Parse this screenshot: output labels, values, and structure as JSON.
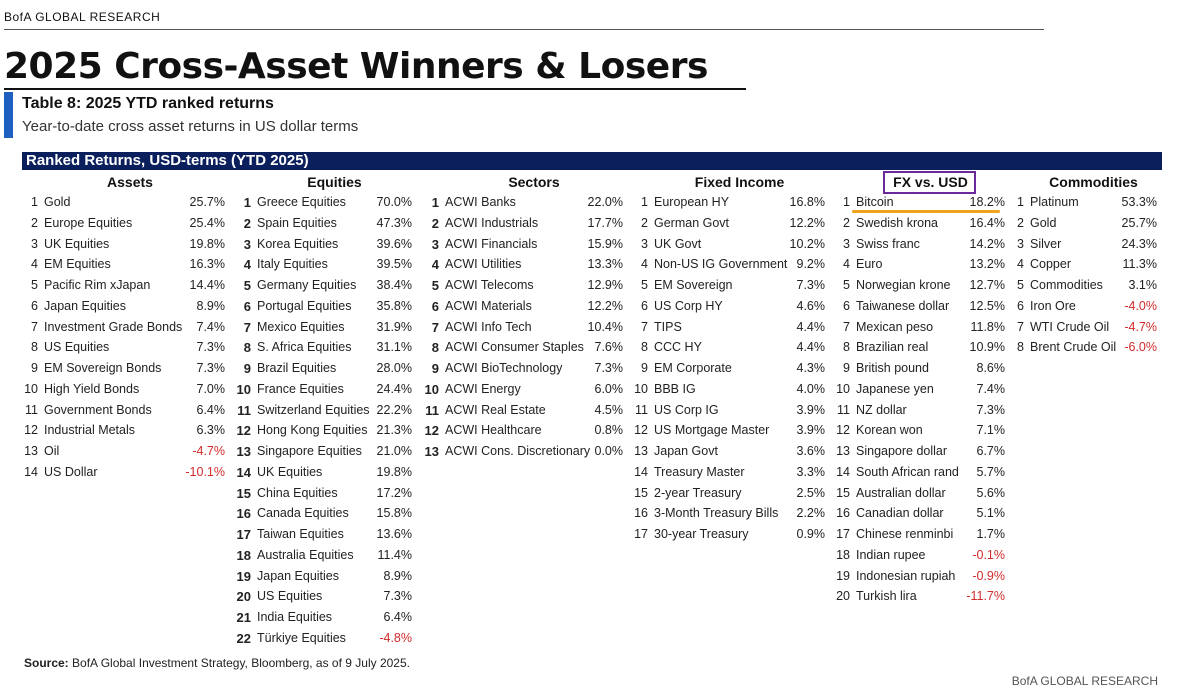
{
  "brand": "BofA GLOBAL RESEARCH",
  "title": "2025 Cross-Asset Winners & Losers",
  "table_title": "Table 8: 2025 YTD ranked returns",
  "subtitle": "Year-to-date cross asset returns in US dollar terms",
  "band_title": "Ranked Returns, USD-terms (YTD 2025)",
  "source_label": "Source:",
  "source_text": " BofA Global Investment Strategy, Bloomberg, as of 9 July 2025.",
  "brand_bottom": "BofA GLOBAL RESEARCH",
  "columns": [
    {
      "header": "Assets",
      "bold_rank": false,
      "rows": [
        {
          "rank": "1",
          "name": "Gold",
          "value": "25.7%"
        },
        {
          "rank": "2",
          "name": "Europe Equities",
          "value": "25.4%"
        },
        {
          "rank": "3",
          "name": "UK Equities",
          "value": "19.8%"
        },
        {
          "rank": "4",
          "name": "EM Equities",
          "value": "16.3%"
        },
        {
          "rank": "5",
          "name": "Pacific Rim xJapan",
          "value": "14.4%"
        },
        {
          "rank": "6",
          "name": "Japan Equities",
          "value": "8.9%"
        },
        {
          "rank": "7",
          "name": "Investment Grade Bonds",
          "value": "7.4%"
        },
        {
          "rank": "8",
          "name": "US Equities",
          "value": "7.3%"
        },
        {
          "rank": "9",
          "name": "EM Sovereign Bonds",
          "value": "7.3%"
        },
        {
          "rank": "10",
          "name": "High Yield Bonds",
          "value": "7.0%"
        },
        {
          "rank": "11",
          "name": "Government Bonds",
          "value": "6.4%"
        },
        {
          "rank": "12",
          "name": "Industrial Metals",
          "value": "6.3%"
        },
        {
          "rank": "13",
          "name": "Oil",
          "value": "-4.7%"
        },
        {
          "rank": "14",
          "name": "US Dollar",
          "value": "-10.1%"
        }
      ]
    },
    {
      "header": "Equities",
      "bold_rank": true,
      "rows": [
        {
          "rank": "1",
          "name": "Greece Equities",
          "value": "70.0%"
        },
        {
          "rank": "2",
          "name": "Spain Equities",
          "value": "47.3%"
        },
        {
          "rank": "3",
          "name": "Korea Equities",
          "value": "39.6%"
        },
        {
          "rank": "4",
          "name": "Italy Equities",
          "value": "39.5%"
        },
        {
          "rank": "5",
          "name": "Germany Equities",
          "value": "38.4%"
        },
        {
          "rank": "6",
          "name": "Portugal Equities",
          "value": "35.8%"
        },
        {
          "rank": "7",
          "name": "Mexico Equities",
          "value": "31.9%"
        },
        {
          "rank": "8",
          "name": "S. Africa Equities",
          "value": "31.1%"
        },
        {
          "rank": "9",
          "name": "Brazil Equities",
          "value": "28.0%"
        },
        {
          "rank": "10",
          "name": "France Equities",
          "value": "24.4%"
        },
        {
          "rank": "11",
          "name": "Switzerland Equities",
          "value": "22.2%"
        },
        {
          "rank": "12",
          "name": "Hong Kong Equities",
          "value": "21.3%"
        },
        {
          "rank": "13",
          "name": "Singapore Equities",
          "value": "21.0%"
        },
        {
          "rank": "14",
          "name": "UK Equities",
          "value": "19.8%"
        },
        {
          "rank": "15",
          "name": "China Equities",
          "value": "17.2%"
        },
        {
          "rank": "16",
          "name": "Canada Equities",
          "value": "15.8%"
        },
        {
          "rank": "17",
          "name": "Taiwan Equities",
          "value": "13.6%"
        },
        {
          "rank": "18",
          "name": "Australia Equities",
          "value": "11.4%"
        },
        {
          "rank": "19",
          "name": "Japan Equities",
          "value": "8.9%"
        },
        {
          "rank": "20",
          "name": "US Equities",
          "value": "7.3%"
        },
        {
          "rank": "21",
          "name": "India Equities",
          "value": "6.4%"
        },
        {
          "rank": "22",
          "name": "Türkiye Equities",
          "value": "-4.8%"
        }
      ]
    },
    {
      "header": "Sectors",
      "bold_rank": true,
      "rows": [
        {
          "rank": "1",
          "name": "ACWI Banks",
          "value": "22.0%"
        },
        {
          "rank": "2",
          "name": "ACWI Industrials",
          "value": "17.7%"
        },
        {
          "rank": "3",
          "name": "ACWI Financials",
          "value": "15.9%"
        },
        {
          "rank": "4",
          "name": "ACWI Utilities",
          "value": "13.3%"
        },
        {
          "rank": "5",
          "name": "ACWI Telecoms",
          "value": "12.9%"
        },
        {
          "rank": "6",
          "name": "ACWI Materials",
          "value": "12.2%"
        },
        {
          "rank": "7",
          "name": "ACWI Info Tech",
          "value": "10.4%"
        },
        {
          "rank": "8",
          "name": "ACWI Consumer Staples",
          "value": "7.6%"
        },
        {
          "rank": "9",
          "name": "ACWI BioTechnology",
          "value": "7.3%"
        },
        {
          "rank": "10",
          "name": "ACWI Energy",
          "value": "6.0%"
        },
        {
          "rank": "11",
          "name": "ACWI Real Estate",
          "value": "4.5%"
        },
        {
          "rank": "12",
          "name": "ACWI Healthcare",
          "value": "0.8%"
        },
        {
          "rank": "13",
          "name": "ACWI Cons. Discretionary",
          "value": "0.0%"
        }
      ]
    },
    {
      "header": "Fixed Income",
      "bold_rank": false,
      "rows": [
        {
          "rank": "1",
          "name": "European HY",
          "value": "16.8%"
        },
        {
          "rank": "2",
          "name": "German Govt",
          "value": "12.2%"
        },
        {
          "rank": "3",
          "name": "UK Govt",
          "value": "10.2%"
        },
        {
          "rank": "4",
          "name": "Non-US IG Government",
          "value": "9.2%"
        },
        {
          "rank": "5",
          "name": "EM Sovereign",
          "value": "7.3%"
        },
        {
          "rank": "6",
          "name": "US Corp HY",
          "value": "4.6%"
        },
        {
          "rank": "7",
          "name": "TIPS",
          "value": "4.4%"
        },
        {
          "rank": "8",
          "name": "CCC HY",
          "value": "4.4%"
        },
        {
          "rank": "9",
          "name": "EM Corporate",
          "value": "4.3%"
        },
        {
          "rank": "10",
          "name": "BBB IG",
          "value": "4.0%"
        },
        {
          "rank": "11",
          "name": "US Corp IG",
          "value": "3.9%"
        },
        {
          "rank": "12",
          "name": "US Mortgage Master",
          "value": "3.9%"
        },
        {
          "rank": "13",
          "name": "Japan Govt",
          "value": "3.6%"
        },
        {
          "rank": "14",
          "name": "Treasury Master",
          "value": "3.3%"
        },
        {
          "rank": "15",
          "name": "2-year Treasury",
          "value": "2.5%"
        },
        {
          "rank": "16",
          "name": "3-Month Treasury Bills",
          "value": "2.2%"
        },
        {
          "rank": "17",
          "name": "30-year Treasury",
          "value": "0.9%"
        }
      ]
    },
    {
      "header": "FX vs. USD",
      "bold_rank": false,
      "rows": [
        {
          "rank": "1",
          "name": "Bitcoin",
          "value": "18.2%"
        },
        {
          "rank": "2",
          "name": "Swedish krona",
          "value": "16.4%"
        },
        {
          "rank": "3",
          "name": "Swiss franc",
          "value": "14.2%"
        },
        {
          "rank": "4",
          "name": "Euro",
          "value": "13.2%"
        },
        {
          "rank": "5",
          "name": "Norwegian krone",
          "value": "12.7%"
        },
        {
          "rank": "6",
          "name": "Taiwanese dollar",
          "value": "12.5%"
        },
        {
          "rank": "7",
          "name": "Mexican peso",
          "value": "11.8%"
        },
        {
          "rank": "8",
          "name": "Brazilian real",
          "value": "10.9%"
        },
        {
          "rank": "9",
          "name": "British pound",
          "value": "8.6%"
        },
        {
          "rank": "10",
          "name": "Japanese yen",
          "value": "7.4%"
        },
        {
          "rank": "11",
          "name": "NZ dollar",
          "value": "7.3%"
        },
        {
          "rank": "12",
          "name": "Korean won",
          "value": "7.1%"
        },
        {
          "rank": "13",
          "name": "Singapore dollar",
          "value": "6.7%"
        },
        {
          "rank": "14",
          "name": "South African rand",
          "value": "5.7%"
        },
        {
          "rank": "15",
          "name": "Australian dollar",
          "value": "5.6%"
        },
        {
          "rank": "16",
          "name": "Canadian dollar",
          "value": "5.1%"
        },
        {
          "rank": "17",
          "name": "Chinese renminbi",
          "value": "1.7%"
        },
        {
          "rank": "18",
          "name": "Indian rupee",
          "value": "-0.1%"
        },
        {
          "rank": "19",
          "name": "Indonesian rupiah",
          "value": "-0.9%"
        },
        {
          "rank": "20",
          "name": "Turkish lira",
          "value": "-11.7%"
        }
      ]
    },
    {
      "header": "Commodities",
      "bold_rank": false,
      "rows": [
        {
          "rank": "1",
          "name": "Platinum",
          "value": "53.3%"
        },
        {
          "rank": "2",
          "name": "Gold",
          "value": "25.7%"
        },
        {
          "rank": "3",
          "name": "Silver",
          "value": "24.3%"
        },
        {
          "rank": "4",
          "name": "Copper",
          "value": "11.3%"
        },
        {
          "rank": "5",
          "name": "Commodities",
          "value": "3.1%"
        },
        {
          "rank": "6",
          "name": "Iron Ore",
          "value": "-4.0%"
        },
        {
          "rank": "7",
          "name": "WTI Crude Oil",
          "value": "-4.7%"
        },
        {
          "rank": "8",
          "name": "Brent Crude Oil",
          "value": "-6.0%"
        }
      ]
    }
  ]
}
